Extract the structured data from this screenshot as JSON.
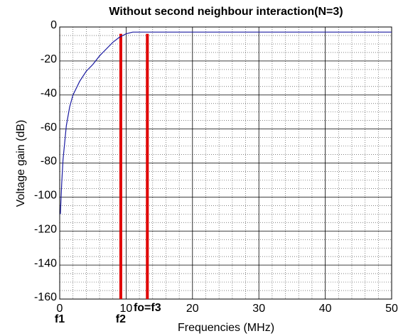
{
  "chart_data": {
    "type": "line",
    "title": "Without second neighbour interaction(N=3)",
    "xlabel": "Frequencies (MHz)",
    "ylabel": "Voltage gain (dB)",
    "xlim": [
      0,
      50
    ],
    "ylim": [
      -160,
      0
    ],
    "xticks": [
      0,
      10,
      20,
      30,
      40,
      50
    ],
    "yticks": [
      -160,
      -140,
      -120,
      -100,
      -80,
      -60,
      -40,
      -20,
      0
    ],
    "grid": true,
    "minor_grid": true,
    "series": [
      {
        "name": "Voltage gain",
        "color": "#1a1aa0",
        "x": [
          0.1,
          0.3,
          0.5,
          1,
          1.5,
          2,
          3,
          4,
          5,
          6,
          7,
          8,
          9,
          10,
          11,
          12,
          15,
          20,
          30,
          40,
          50
        ],
        "values": [
          -110,
          -92,
          -78,
          -58,
          -47,
          -40,
          -32,
          -26,
          -22,
          -17,
          -13,
          -9,
          -6,
          -4,
          -3,
          -3,
          -3,
          -3,
          -3,
          -3,
          -3
        ]
      }
    ],
    "vlines": {
      "color": "#e00000",
      "x": [
        9.2,
        13.2
      ],
      "top": -4
    },
    "annotations": [
      {
        "text": "f1",
        "x": 0
      },
      {
        "text": "f2",
        "x": 9.2
      },
      {
        "text": "fo=f3",
        "x": 13.2
      }
    ]
  }
}
